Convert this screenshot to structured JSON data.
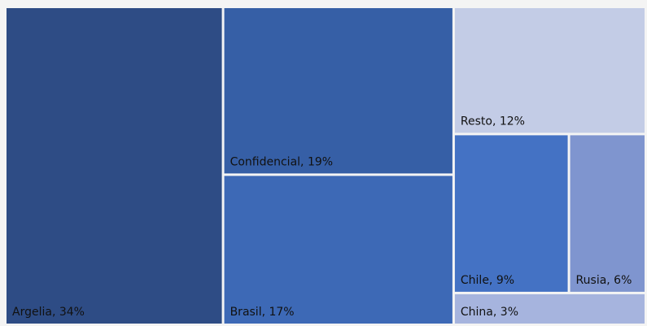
{
  "chart_data": {
    "type": "treemap",
    "value_labels": [
      "Argelia, 34%",
      "Confidencial, 19%",
      "Brasil, 17%",
      "Resto, 12%",
      "Chile, 9%",
      "Rusia, 6%",
      "China, 3%"
    ],
    "values": [
      34,
      19,
      17,
      12,
      9,
      6,
      3
    ],
    "colors": [
      "#2e4c85",
      "#365fa6",
      "#3d69b6",
      "#c3cce6",
      "#4472c4",
      "#7f95cf",
      "#a6b4de"
    ]
  }
}
